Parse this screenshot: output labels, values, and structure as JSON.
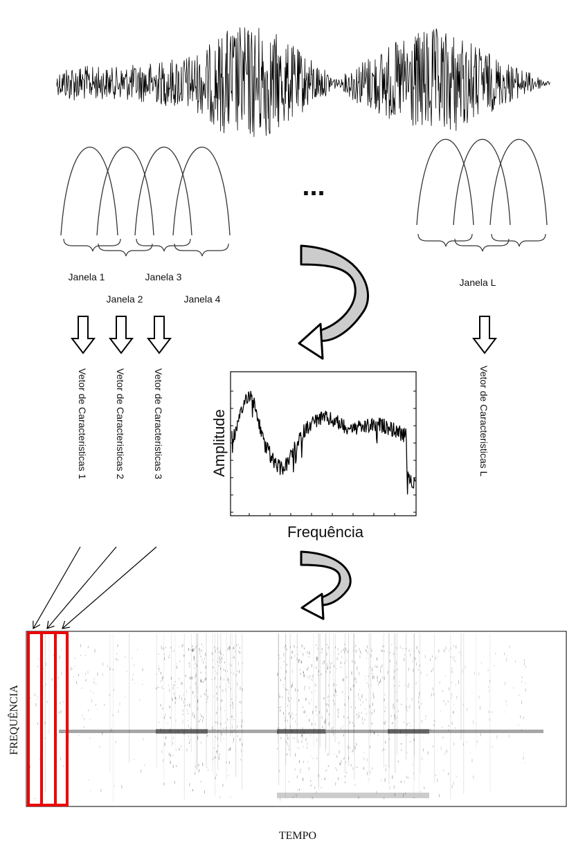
{
  "windows": [
    {
      "label": "Janela 1"
    },
    {
      "label": "Janela 2"
    },
    {
      "label": "Janela 3"
    },
    {
      "label": "Janela 4"
    },
    {
      "label": "Janela L"
    }
  ],
  "ellipsis": "...",
  "feature_vectors": [
    {
      "label": "Vetor de Caracteristicas 1"
    },
    {
      "label": "Vetor de Caracteristicas 2"
    },
    {
      "label": "Vetor de Caracteristicas 3"
    },
    {
      "label": "Vetor de Caracteristicas L"
    }
  ],
  "spectrum": {
    "y_label": "Amplitude",
    "x_label": "Frequência"
  },
  "spectrogram": {
    "y_label": "FREQUÊNCIA",
    "x_label": "TEMPO"
  }
}
